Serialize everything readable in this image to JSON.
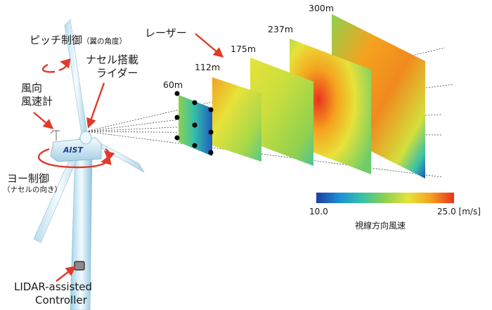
{
  "labels": {
    "pitch": "ピッチ制御",
    "pitch_note": "（翼の角度）",
    "nacelle_lidar_line1": "ナセル搭載",
    "nacelle_lidar_line2": "ライダー",
    "wind_line1": "風向",
    "wind_line2": "風速計",
    "yaw": "ヨー制御",
    "yaw_note": "（ナセルの向き）",
    "laser": "レーザー",
    "controller_line1": "LIDAR-assisted",
    "controller_line2": "Controller",
    "logo": "AIST"
  },
  "distances": [
    "60m",
    "112m",
    "175m",
    "237m",
    "300m"
  ],
  "colorbar": {
    "min_label": "10.0",
    "max_label": "25.0 [m/s]",
    "title": "視線方向風速",
    "colors": [
      "#1e3fa0",
      "#1d8fd6",
      "#36c0a8",
      "#8fd14f",
      "#e7e23a",
      "#f5a21e",
      "#e8321e"
    ]
  },
  "accent": "#e03a2a"
}
